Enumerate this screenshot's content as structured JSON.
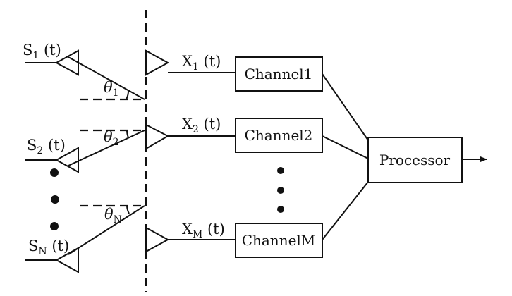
{
  "diagram": {
    "sources": [
      {
        "base": "S",
        "sub": "1",
        "suffix": " (t)"
      },
      {
        "base": "S",
        "sub": "2",
        "suffix": " (t)"
      },
      {
        "base": "S",
        "sub": "N",
        "suffix": " (t)"
      }
    ],
    "angles": [
      {
        "base": "θ",
        "sub": "1"
      },
      {
        "base": "θ",
        "sub": "2"
      },
      {
        "base": "θ",
        "sub": "N"
      }
    ],
    "signals": [
      {
        "base": "X",
        "sub": "1",
        "suffix": " (t)"
      },
      {
        "base": "X",
        "sub": "2",
        "suffix": " (t)"
      },
      {
        "base": "X",
        "sub": "M",
        "suffix": " (t)"
      }
    ],
    "channels": [
      "Channel1",
      "Channel2",
      "ChannelM"
    ],
    "processor": "Processor"
  }
}
